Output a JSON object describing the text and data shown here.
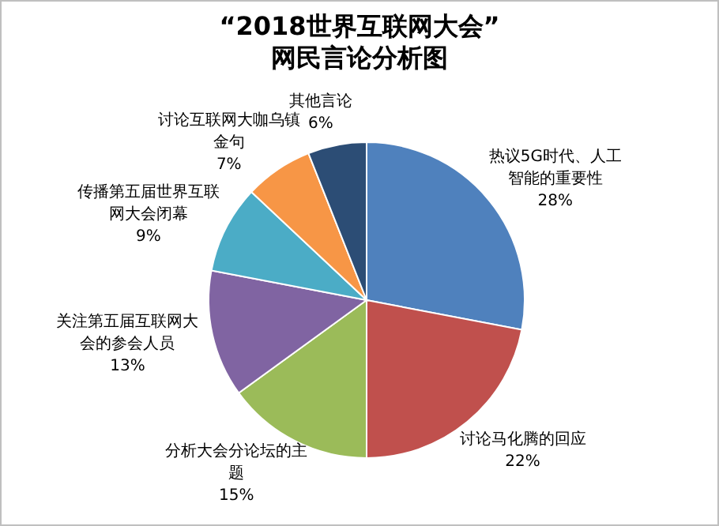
{
  "chart_data": {
    "type": "pie",
    "title": "“2018世界互联网大会”",
    "subtitle": "网民言论分析图",
    "categories": [
      "热议5G时代、人工智能的重要性",
      "讨论马化腾的回应",
      "分析大会分论坛的主题",
      "关注第五届互联网大会的参会人员",
      "传播第五届世界互联网大会闭幕",
      "讨论互联网大咖乌镇金句",
      "其他言论"
    ],
    "values": [
      28,
      22,
      15,
      13,
      9,
      7,
      6
    ],
    "colors": [
      "#4f81bd",
      "#c0504d",
      "#9bbb59",
      "#8064a2",
      "#4bacc6",
      "#f79646",
      "#2c4d75"
    ],
    "value_labels": [
      "28%",
      "22%",
      "15%",
      "13%",
      "9%",
      "7%",
      "6%"
    ]
  }
}
